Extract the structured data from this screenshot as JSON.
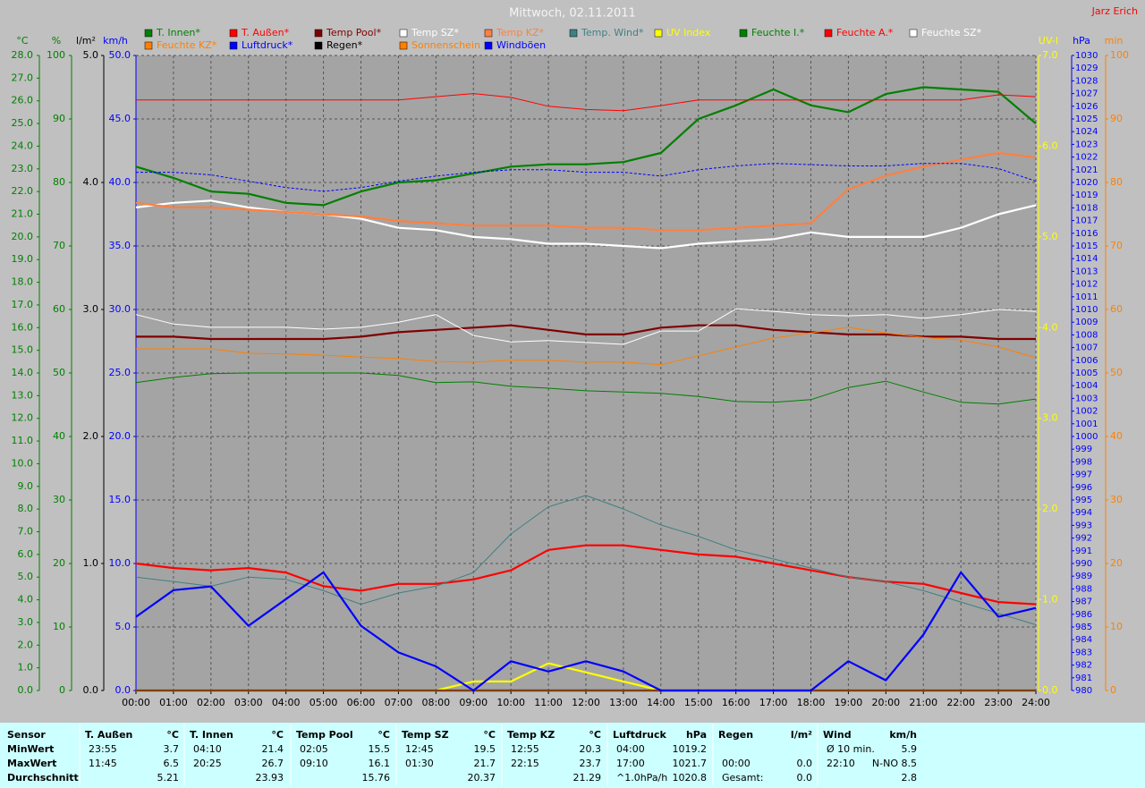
{
  "chart_data": {
    "type": "line",
    "title": "Mittwoch, 02.11.2011",
    "author": "Jarz Erich",
    "grid": true,
    "x": [
      0,
      1,
      2,
      3,
      4,
      5,
      6,
      7,
      8,
      9,
      10,
      11,
      12,
      13,
      14,
      15,
      16,
      17,
      18,
      19,
      20,
      21,
      22,
      23,
      24
    ],
    "xlim": [
      0,
      24
    ],
    "xticks": [
      {
        "value": 0,
        "label": "00:00"
      },
      {
        "value": 1,
        "label": "01:00"
      },
      {
        "value": 2,
        "label": "02:00"
      },
      {
        "value": 3,
        "label": "03:00"
      },
      {
        "value": 4,
        "label": "04:00"
      },
      {
        "value": 5,
        "label": "05:00"
      },
      {
        "value": 6,
        "label": "06:00"
      },
      {
        "value": 7,
        "label": "07:00"
      },
      {
        "value": 8,
        "label": "08:00"
      },
      {
        "value": 9,
        "label": "09:00"
      },
      {
        "value": 10,
        "label": "10:00"
      },
      {
        "value": 11,
        "label": "11:00"
      },
      {
        "value": 12,
        "label": "12:00"
      },
      {
        "value": 13,
        "label": "13:00"
      },
      {
        "value": 14,
        "label": "14:00"
      },
      {
        "value": 15,
        "label": "15:00"
      },
      {
        "value": 16,
        "label": "16:00"
      },
      {
        "value": 17,
        "label": "17:00"
      },
      {
        "value": 18,
        "label": "18:00"
      },
      {
        "value": 19,
        "label": "19:00"
      },
      {
        "value": 20,
        "label": "20:00"
      },
      {
        "value": 21,
        "label": "21:00"
      },
      {
        "value": 22,
        "label": "22:00"
      },
      {
        "value": 23,
        "label": "23:00"
      },
      {
        "value": 24,
        "label": "24:00"
      }
    ],
    "axes": [
      {
        "unit": "°C",
        "color": "#008000",
        "lim": [
          0,
          28
        ],
        "ticks": [
          {
            "value": 0,
            "label": "0.0"
          },
          {
            "value": 1,
            "label": "1.0"
          },
          {
            "value": 2,
            "label": "2.0"
          },
          {
            "value": 3,
            "label": "3.0"
          },
          {
            "value": 4,
            "label": "4.0"
          },
          {
            "value": 5,
            "label": "5.0"
          },
          {
            "value": 6,
            "label": "6.0"
          },
          {
            "value": 7,
            "label": "7.0"
          },
          {
            "value": 8,
            "label": "8.0"
          },
          {
            "value": 9,
            "label": "9.0"
          },
          {
            "value": 10,
            "label": "10.0"
          },
          {
            "value": 11,
            "label": "11.0"
          },
          {
            "value": 12,
            "label": "12.0"
          },
          {
            "value": 13,
            "label": "13.0"
          },
          {
            "value": 14,
            "label": "14.0"
          },
          {
            "value": 15,
            "label": "15.0"
          },
          {
            "value": 16,
            "label": "16.0"
          },
          {
            "value": 17,
            "label": "17.0"
          },
          {
            "value": 18,
            "label": "18.0"
          },
          {
            "value": 19,
            "label": "19.0"
          },
          {
            "value": 20,
            "label": "20.0"
          },
          {
            "value": 21,
            "label": "21.0"
          },
          {
            "value": 22,
            "label": "22.0"
          },
          {
            "value": 23,
            "label": "23.0"
          },
          {
            "value": 24,
            "label": "24.0"
          },
          {
            "value": 25,
            "label": "25.0"
          },
          {
            "value": 26,
            "label": "26.0"
          },
          {
            "value": 27,
            "label": "27.0"
          },
          {
            "value": 28,
            "label": "28.0"
          }
        ]
      },
      {
        "unit": "%",
        "color": "#008000",
        "lim": [
          0,
          100
        ],
        "grid": true,
        "ticks": [
          0,
          10,
          20,
          30,
          40,
          50,
          60,
          70,
          80,
          90,
          100
        ]
      },
      {
        "unit": "l/m²",
        "color": "#000000",
        "lim": [
          0,
          5
        ],
        "ticks": [
          {
            "value": 0,
            "label": "0.0"
          },
          {
            "value": 1,
            "label": "1.0"
          },
          {
            "value": 2,
            "label": "2.0"
          },
          {
            "value": 3,
            "label": "3.0"
          },
          {
            "value": 4,
            "label": "4.0"
          },
          {
            "value": 5,
            "label": "5.0"
          }
        ]
      },
      {
        "unit": "km/h",
        "color": "#0000ff",
        "lim": [
          0,
          50
        ],
        "ticks": [
          {
            "value": 0,
            "label": "0.0"
          },
          {
            "value": 5,
            "label": "5.0"
          },
          {
            "value": 10,
            "label": "10.0"
          },
          {
            "value": 15,
            "label": "15.0"
          },
          {
            "value": 20,
            "label": "20.0"
          },
          {
            "value": 25,
            "label": "25.0"
          },
          {
            "value": 30,
            "label": "30.0"
          },
          {
            "value": 35,
            "label": "35.0"
          },
          {
            "value": 40,
            "label": "40.0"
          },
          {
            "value": 45,
            "label": "45.0"
          },
          {
            "value": 50,
            "label": "50.0"
          }
        ]
      },
      {
        "unit": "UV-I",
        "color": "#ffff00",
        "lim": [
          0,
          7
        ],
        "ticks": [
          {
            "value": 0,
            "label": "0.0"
          },
          {
            "value": 1,
            "label": "1.0"
          },
          {
            "value": 2,
            "label": "2.0"
          },
          {
            "value": 3,
            "label": "3.0"
          },
          {
            "value": 4,
            "label": "4.0"
          },
          {
            "value": 5,
            "label": "5.0"
          },
          {
            "value": 6,
            "label": "6.0"
          },
          {
            "value": 7,
            "label": "7.0"
          }
        ]
      },
      {
        "unit": "hPa",
        "color": "#0000ff",
        "lim": [
          980,
          1030
        ],
        "ticks": [
          980,
          981,
          982,
          983,
          984,
          985,
          986,
          987,
          988,
          989,
          990,
          991,
          992,
          993,
          994,
          995,
          996,
          997,
          998,
          999,
          1000,
          1001,
          1002,
          1003,
          1004,
          1005,
          1006,
          1007,
          1008,
          1009,
          1010,
          1011,
          1012,
          1013,
          1014,
          1015,
          1016,
          1017,
          1018,
          1019,
          1020,
          1021,
          1022,
          1023,
          1024,
          1025,
          1026,
          1027,
          1028,
          1029,
          1030
        ]
      },
      {
        "unit": "min",
        "color": "#ff8000",
        "lim": [
          0,
          100
        ],
        "ticks": [
          0,
          10,
          20,
          30,
          40,
          50,
          60,
          70,
          80,
          90,
          100
        ]
      }
    ],
    "series": [
      {
        "name": "T. Innen*",
        "color": "#008000",
        "axis": 0,
        "style": "thick",
        "values": [
          23.1,
          22.6,
          22.0,
          21.9,
          21.5,
          21.4,
          22.0,
          22.4,
          22.5,
          22.8,
          23.1,
          23.2,
          23.2,
          23.3,
          23.7,
          25.2,
          25.8,
          26.5,
          25.8,
          25.5,
          26.3,
          26.6,
          26.5,
          26.4,
          25.0
        ]
      },
      {
        "name": "T. Außen*",
        "color": "#ff0000",
        "axis": 0,
        "style": "thick",
        "values": [
          5.6,
          5.4,
          5.3,
          5.4,
          5.2,
          4.6,
          4.4,
          4.7,
          4.7,
          4.9,
          5.3,
          6.2,
          6.4,
          6.4,
          6.2,
          6.0,
          5.9,
          5.6,
          5.3,
          5.0,
          4.8,
          4.7,
          4.3,
          3.9,
          3.8
        ]
      },
      {
        "name": "Temp Pool*",
        "color": "#800000",
        "axis": 0,
        "style": "thick",
        "values": [
          15.6,
          15.6,
          15.5,
          15.5,
          15.5,
          15.5,
          15.6,
          15.8,
          15.9,
          16.0,
          16.1,
          15.9,
          15.7,
          15.7,
          16.0,
          16.1,
          16.1,
          15.9,
          15.8,
          15.7,
          15.7,
          15.6,
          15.6,
          15.5,
          15.5
        ]
      },
      {
        "name": "Temp SZ*",
        "color": "#ffffff",
        "axis": 0,
        "style": "thick",
        "values": [
          21.3,
          21.5,
          21.6,
          21.3,
          21.1,
          21.0,
          20.8,
          20.4,
          20.3,
          20.0,
          19.9,
          19.7,
          19.7,
          19.6,
          19.5,
          19.7,
          19.8,
          19.9,
          20.2,
          20.0,
          20.0,
          20.0,
          20.4,
          21.0,
          21.4
        ]
      },
      {
        "name": "Temp KZ*",
        "color": "#ff8040",
        "axis": 0,
        "style": "thick",
        "values": [
          21.5,
          21.3,
          21.3,
          21.2,
          21.1,
          21.0,
          20.9,
          20.7,
          20.6,
          20.5,
          20.5,
          20.5,
          20.4,
          20.4,
          20.3,
          20.3,
          20.4,
          20.5,
          20.6,
          22.1,
          22.7,
          23.1,
          23.4,
          23.7,
          23.5
        ]
      },
      {
        "name": "Temp. Wind*",
        "color": "#408080",
        "axis": 0,
        "style": "thin",
        "values": [
          5.0,
          4.8,
          4.6,
          5.0,
          4.9,
          4.4,
          3.8,
          4.3,
          4.6,
          5.2,
          6.9,
          8.1,
          8.6,
          8.0,
          7.3,
          6.8,
          6.2,
          5.8,
          5.4,
          5.0,
          4.8,
          4.4,
          3.9,
          3.4,
          2.9
        ]
      },
      {
        "name": "UV Index",
        "color": "#ffff00",
        "axis": 4,
        "style": "thick",
        "values": [
          0,
          0,
          0,
          0,
          0,
          0,
          0,
          0,
          0,
          0.1,
          0.1,
          0.3,
          0.2,
          0.1,
          0,
          0,
          0,
          0,
          0,
          0,
          0,
          0,
          0,
          0,
          0
        ]
      },
      {
        "name": "Feuchte I.*",
        "color": "#008000",
        "axis": 1,
        "style": "thin",
        "values": [
          48.5,
          49.3,
          49.9,
          50.0,
          50.0,
          50.0,
          50.0,
          49.6,
          48.5,
          48.6,
          47.9,
          47.6,
          47.2,
          47.0,
          46.8,
          46.3,
          45.5,
          45.4,
          45.8,
          47.7,
          48.7,
          47.0,
          45.4,
          45.1,
          45.9
        ]
      },
      {
        "name": "Feuchte A.*",
        "color": "#ff0000",
        "axis": 1,
        "style": "thin",
        "values": [
          93.0,
          93.0,
          93.0,
          93.0,
          93.0,
          93.0,
          93.0,
          93.0,
          93.5,
          94.0,
          93.4,
          92.0,
          91.5,
          91.3,
          92.1,
          93.0,
          93.0,
          93.0,
          93.0,
          93.0,
          93.0,
          93.0,
          93.0,
          93.8,
          93.5
        ]
      },
      {
        "name": "Feuchte SZ*",
        "color": "#ffffff",
        "axis": 1,
        "style": "thin",
        "values": [
          59.2,
          57.7,
          57.2,
          57.2,
          57.2,
          56.9,
          57.2,
          58.0,
          59.2,
          55.9,
          54.9,
          55.1,
          54.8,
          54.5,
          56.6,
          56.6,
          60.1,
          59.7,
          59.2,
          59.0,
          59.2,
          58.6,
          59.2,
          60.0,
          59.7
        ]
      },
      {
        "name": "Feuchte KZ*",
        "color": "#ff8000",
        "axis": 1,
        "style": "thin",
        "values": [
          53.8,
          53.8,
          53.8,
          53.1,
          53.0,
          52.8,
          52.5,
          52.3,
          51.8,
          51.7,
          52.0,
          52.0,
          51.7,
          51.7,
          51.3,
          52.7,
          54.1,
          55.5,
          56.3,
          57.2,
          56.3,
          55.6,
          55.2,
          54.1,
          52.4
        ]
      },
      {
        "name": "Luftdruck*",
        "color": "#0000ff",
        "axis": 5,
        "style": "dotted",
        "values": [
          1020.8,
          1020.8,
          1020.6,
          1020.1,
          1019.6,
          1019.3,
          1019.6,
          1020.1,
          1020.5,
          1020.8,
          1021.0,
          1021.0,
          1020.8,
          1020.8,
          1020.5,
          1021.0,
          1021.3,
          1021.5,
          1021.4,
          1021.3,
          1021.3,
          1021.5,
          1021.5,
          1021.1,
          1020.1
        ]
      },
      {
        "name": "Regen*",
        "color": "#000000",
        "axis": 2,
        "style": "thick",
        "values": [
          0,
          0,
          0,
          0,
          0,
          0,
          0,
          0,
          0,
          0,
          0,
          0,
          0,
          0,
          0,
          0,
          0,
          0,
          0,
          0,
          0,
          0,
          0,
          0,
          0
        ]
      },
      {
        "name": "Sonnenschein",
        "color": "#ff8000",
        "axis": 6,
        "style": "thin",
        "values": [
          0,
          0,
          0,
          0,
          0,
          0,
          0,
          0,
          0,
          0,
          0,
          0,
          0,
          0,
          0,
          0,
          0,
          0,
          0,
          0,
          0,
          0,
          0,
          0,
          0
        ]
      },
      {
        "name": "Windböen",
        "color": "#0000ff",
        "axis": 3,
        "style": "thick",
        "values": [
          5.8,
          7.9,
          8.2,
          5.1,
          7.2,
          9.3,
          5.1,
          3.0,
          1.9,
          0,
          2.3,
          1.5,
          2.3,
          1.5,
          0,
          0,
          0,
          0,
          0,
          2.3,
          0.8,
          4.4,
          9.3,
          5.8,
          6.5
        ]
      }
    ]
  },
  "stats_table": {
    "row_headers": [
      "Sensor",
      "MinWert",
      "MaxWert",
      "Durchschnitt"
    ],
    "columns": [
      {
        "name": "T. Außen",
        "unit": "°C",
        "cells": [
          {
            "left": "23:55",
            "right": "3.7"
          },
          {
            "left": "11:45",
            "right": "6.5"
          },
          {
            "right": "5.21"
          }
        ]
      },
      {
        "name": "T. Innen",
        "unit": "°C",
        "cells": [
          {
            "left": "04:10",
            "right": "21.4"
          },
          {
            "left": "20:25",
            "right": "26.7"
          },
          {
            "right": "23.93"
          }
        ]
      },
      {
        "name": "Temp Pool",
        "unit": "°C",
        "cells": [
          {
            "left": "02:05",
            "right": "15.5"
          },
          {
            "left": "09:10",
            "right": "16.1"
          },
          {
            "right": "15.76"
          }
        ]
      },
      {
        "name": "Temp SZ",
        "unit": "°C",
        "cells": [
          {
            "left": "12:45",
            "right": "19.5"
          },
          {
            "left": "01:30",
            "right": "21.7"
          },
          {
            "right": "20.37"
          }
        ]
      },
      {
        "name": "Temp KZ",
        "unit": "°C",
        "cells": [
          {
            "left": "12:55",
            "right": "20.3"
          },
          {
            "left": "22:15",
            "right": "23.7"
          },
          {
            "right": "21.29"
          }
        ]
      },
      {
        "name": "Luftdruck",
        "unit": "hPa",
        "cells": [
          {
            "left": "04:00",
            "right": "1019.2"
          },
          {
            "left": "17:00",
            "right": "1021.7"
          },
          {
            "left": "^1.0hPa/h",
            "right": "1020.8"
          }
        ]
      },
      {
        "name": "Regen",
        "unit": "l/m²",
        "cells": [
          null,
          {
            "left": "00:00",
            "right": "0.0"
          },
          {
            "left": "Gesamt:",
            "right": "0.0"
          }
        ]
      },
      {
        "name": "Wind",
        "unit": "km/h",
        "cells": [
          {
            "left": "Ø 10 min.",
            "right": "5.9"
          },
          {
            "left": "22:10",
            "right": "N-NO 8.5"
          },
          {
            "right": "2.8"
          }
        ]
      }
    ]
  }
}
